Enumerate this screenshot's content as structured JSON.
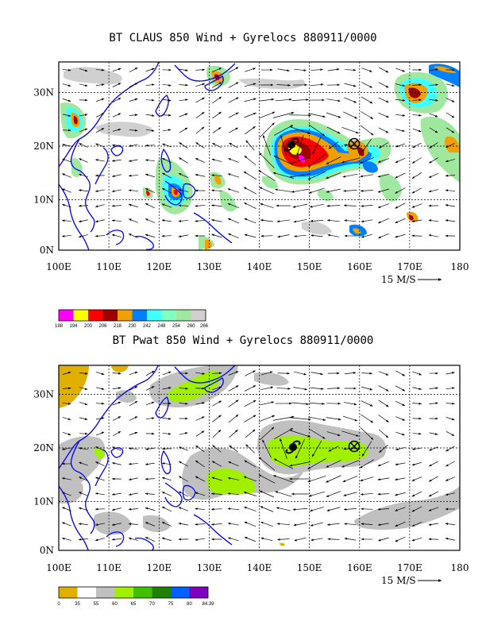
{
  "colors": {
    "coast": "#0000ff",
    "frame": "#000000",
    "claus_levels": [
      "#ff00ff",
      "#ffff00",
      "#ff0000",
      "#a00000",
      "#f0a000",
      "#0080ff",
      "#40ffff",
      "#80ffc0",
      "#a0e8a0",
      "#d0d0d0"
    ],
    "pwat_levels": [
      "#e0b000",
      "#ffffff",
      "#c0c0c0",
      "#a0f000",
      "#40c000",
      "#208000",
      "#0060ff",
      "#8000c0"
    ]
  },
  "top_panel": {
    "title": "BT CLAUS 850 Wind + Gyrelocs 880911/0000",
    "x_ticks": [
      "100E",
      "110E",
      "120E",
      "130E",
      "140E",
      "150E",
      "160E",
      "170E",
      "180"
    ],
    "y_ticks": [
      "30N",
      "20N",
      "10N",
      "0N"
    ],
    "vector_label": "15 M/S",
    "colorbar_labels": [
      "188",
      "194",
      "200",
      "206",
      "218",
      "230",
      "242",
      "248",
      "254",
      "260",
      "266"
    ]
  },
  "bottom_panel": {
    "title": "BT Pwat 850 Wind + Gyrelocs 880911/0000",
    "x_ticks": [
      "100E",
      "110E",
      "120E",
      "130E",
      "140E",
      "150E",
      "160E",
      "170E",
      "180"
    ],
    "y_ticks": [
      "30N",
      "20N",
      "10N",
      "0N"
    ],
    "vector_label": "15 M/S",
    "colorbar_labels": [
      "0",
      "35",
      "55",
      "60",
      "65",
      "70",
      "75",
      "80",
      "84.39"
    ]
  },
  "symbols": {
    "typhoon_icon": "tropical-cyclone-symbol",
    "gyre_marker_icon": "circled-x-symbol"
  }
}
